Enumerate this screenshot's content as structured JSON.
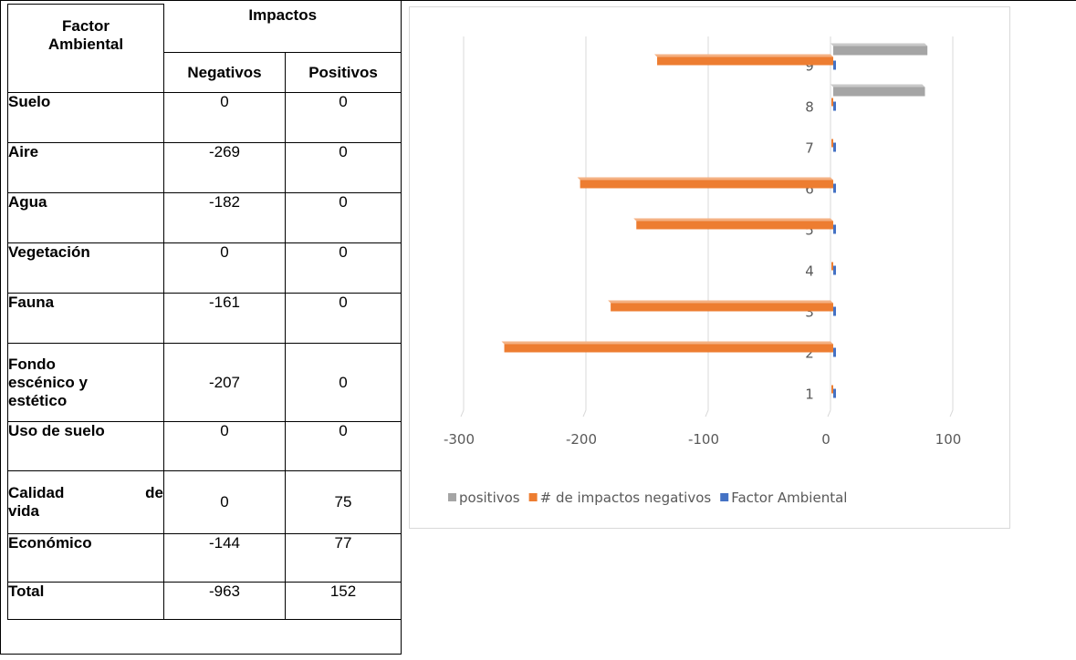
{
  "table": {
    "header": {
      "factor": "Factor Ambiental",
      "factor_lines": [
        "Factor",
        "Ambiental"
      ],
      "impacts": "Impactos",
      "negatives": "Negativos",
      "positives": "Positivos"
    },
    "rows": [
      {
        "name_lines": [
          "Suelo"
        ],
        "negative": "0",
        "positive": "0"
      },
      {
        "name_lines": [
          "Aire"
        ],
        "negative": "-269",
        "positive": "0"
      },
      {
        "name_lines": [
          "Agua"
        ],
        "negative": "-182",
        "positive": "0"
      },
      {
        "name_lines": [
          "Vegetación"
        ],
        "negative": "0",
        "positive": "0"
      },
      {
        "name_lines": [
          "Fauna"
        ],
        "negative": "-161",
        "positive": "0"
      },
      {
        "name_lines": [
          "Fondo",
          "escénico y",
          "estético"
        ],
        "negative": "-207",
        "positive": "0"
      },
      {
        "name_lines": [
          "Uso de suelo"
        ],
        "negative": "0",
        "positive": "0"
      },
      {
        "name_lines": [
          "Calidad de",
          "vida"
        ],
        "negative": "0",
        "positive": "75"
      },
      {
        "name_lines": [
          "Económico"
        ],
        "negative": "-144",
        "positive": "77"
      }
    ],
    "total": {
      "name": "Total",
      "negative": "-963",
      "positive": "152"
    }
  },
  "chart_data": {
    "type": "bar",
    "orientation": "horizontal",
    "categories": [
      "1",
      "2",
      "3",
      "4",
      "5",
      "6",
      "7",
      "8",
      "9"
    ],
    "series": [
      {
        "name": "Factor Ambiental",
        "values": [
          1,
          2,
          3,
          4,
          5,
          6,
          7,
          8,
          9
        ],
        "color": "#4472C4"
      },
      {
        "name": "# de impactos negativos",
        "values": [
          0,
          -269,
          -182,
          0,
          -161,
          -207,
          0,
          0,
          -144
        ],
        "color": "#ED7D31"
      },
      {
        "name": "positivos",
        "values": [
          0,
          0,
          0,
          0,
          0,
          0,
          0,
          75,
          77
        ],
        "color": "#A5A5A5"
      }
    ],
    "xlim": [
      -300,
      100
    ],
    "xticks": [
      "-300",
      "-200",
      "-100",
      "0",
      "100"
    ],
    "legend": {
      "position": "bottom",
      "order": [
        "positivos",
        "# de impactos negativos",
        "Factor Ambiental"
      ]
    },
    "grid": true,
    "style": "3d"
  }
}
